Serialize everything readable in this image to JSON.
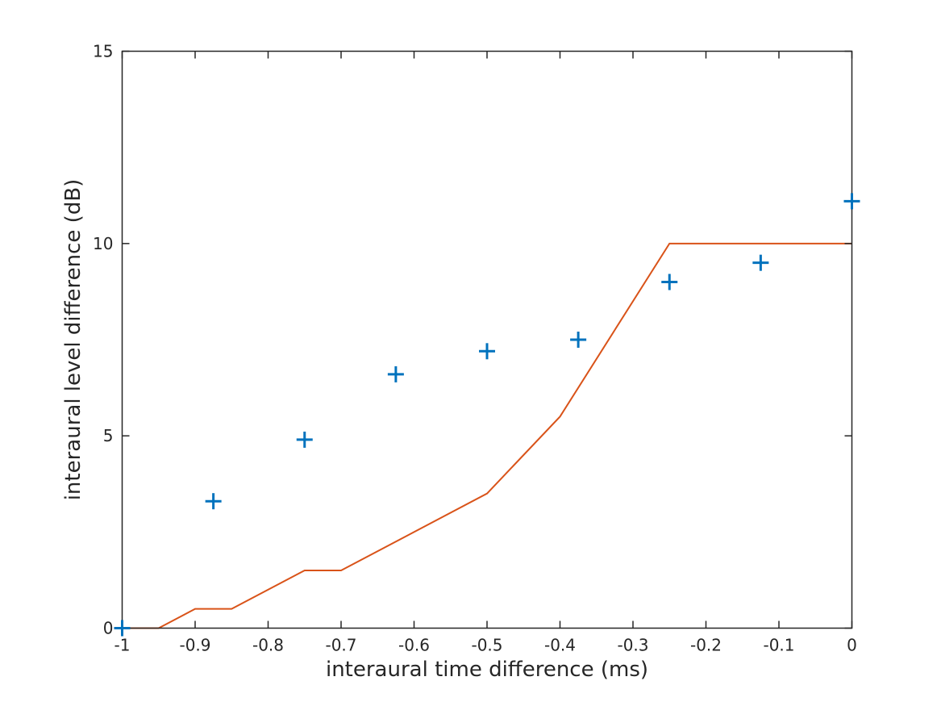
{
  "figure": {
    "background": "#ffffff",
    "axis_color": "#262626",
    "text_color": "#262626"
  },
  "chart_data": {
    "type": "line",
    "title": "",
    "xlabel": "interaural time difference (ms)",
    "ylabel": "interaural level difference (dB)",
    "xlim": [
      -1,
      0
    ],
    "ylim": [
      0,
      15
    ],
    "xticks": [
      -1,
      -0.9,
      -0.8,
      -0.7,
      -0.6,
      -0.5,
      -0.4,
      -0.3,
      -0.2,
      -0.1,
      0
    ],
    "xtick_labels": [
      "-1",
      "-0.9",
      "-0.8",
      "-0.7",
      "-0.6",
      "-0.5",
      "-0.4",
      "-0.3",
      "-0.2",
      "-0.1",
      "0"
    ],
    "yticks": [
      0,
      5,
      10,
      15
    ],
    "ytick_labels": [
      "0",
      "5",
      "10",
      "15"
    ],
    "grid": false,
    "legend": "none",
    "box": true,
    "series": [
      {
        "name": "mapping-curve",
        "type": "line",
        "color": "#D95319",
        "line_width": 2,
        "x": [
          -1,
          -0.95,
          -0.9,
          -0.85,
          -0.75,
          -0.7,
          -0.5,
          -0.4,
          -0.25,
          0
        ],
        "y": [
          0,
          0,
          0.5,
          0.5,
          1.5,
          1.5,
          3.5,
          5.5,
          10,
          10
        ]
      },
      {
        "name": "measured-points",
        "type": "scatter",
        "marker": "plus",
        "color": "#0072BD",
        "marker_size": 20,
        "marker_stroke": 3,
        "x": [
          -1,
          -0.875,
          -0.75,
          -0.625,
          -0.5,
          -0.375,
          -0.25,
          -0.125,
          0
        ],
        "y": [
          0,
          3.3,
          4.9,
          6.6,
          7.2,
          7.5,
          9.0,
          9.5,
          11.1
        ]
      }
    ]
  }
}
